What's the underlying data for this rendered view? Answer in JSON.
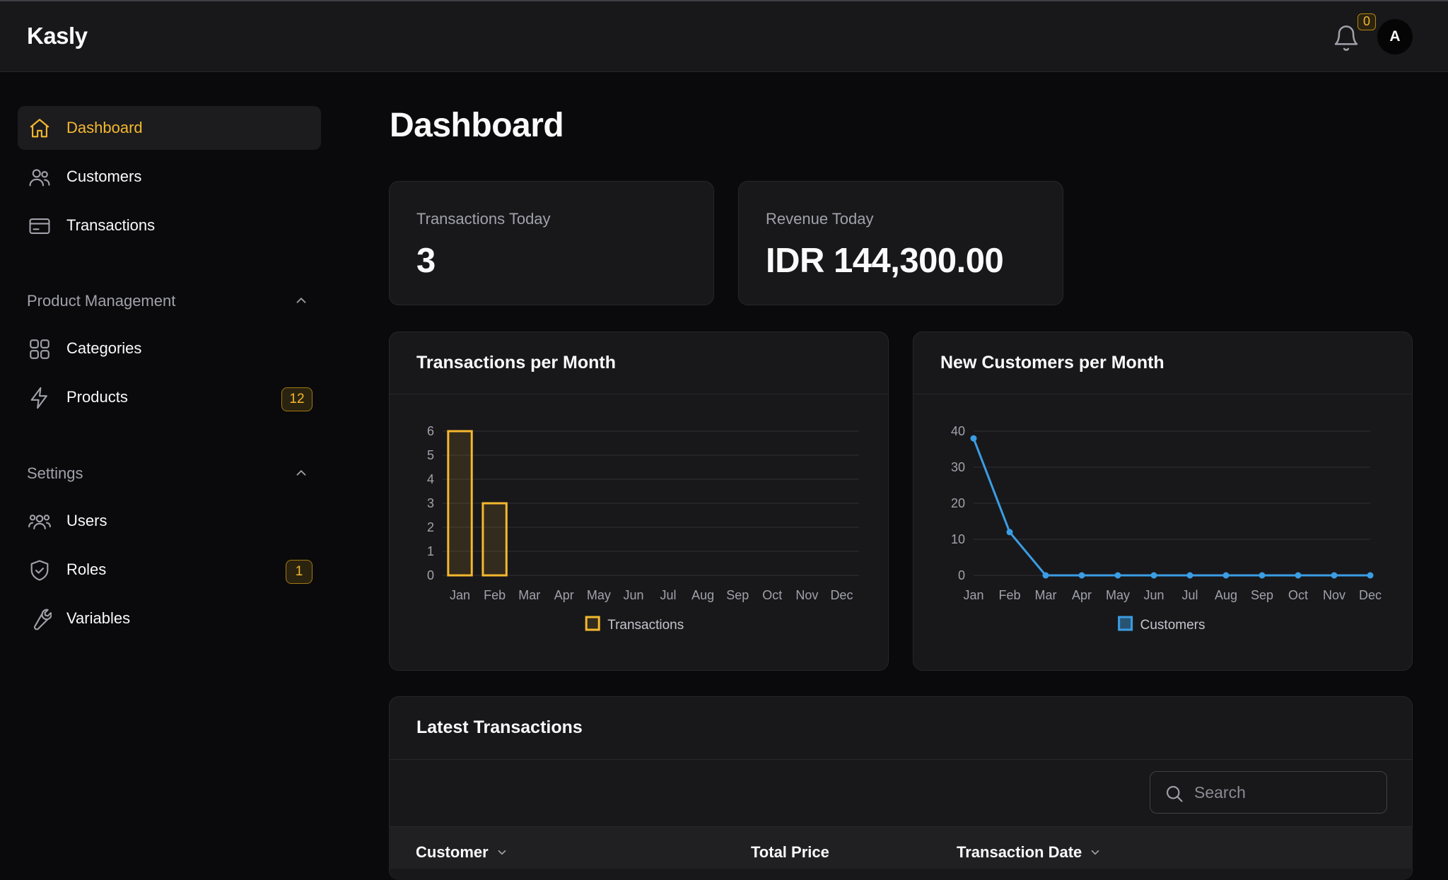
{
  "app": {
    "title": "Kasly",
    "notification_count": "0",
    "avatar_initial": "A"
  },
  "sidebar": {
    "items": [
      {
        "label": "Dashboard",
        "icon": "home-icon",
        "active": true
      },
      {
        "label": "Customers",
        "icon": "users-icon"
      },
      {
        "label": "Transactions",
        "icon": "credit-card-icon"
      }
    ],
    "product_management": {
      "title": "Product Management",
      "items": [
        {
          "label": "Categories",
          "icon": "grid-icon"
        },
        {
          "label": "Products",
          "icon": "bolt-icon",
          "badge": "12"
        }
      ]
    },
    "settings": {
      "title": "Settings",
      "items": [
        {
          "label": "Users",
          "icon": "user-group-icon"
        },
        {
          "label": "Roles",
          "icon": "shield-check-icon",
          "badge": "1"
        },
        {
          "label": "Variables",
          "icon": "wrench-icon"
        }
      ]
    }
  },
  "main": {
    "title": "Dashboard",
    "stats": [
      {
        "label": "Transactions Today",
        "value": "3"
      },
      {
        "label": "Revenue Today",
        "value": "IDR 144,300.00"
      }
    ],
    "latest": {
      "title": "Latest Transactions",
      "search_placeholder": "Search",
      "columns": [
        "Customer",
        "Total Price",
        "Transaction Date"
      ]
    }
  },
  "colors": {
    "accent": "#f5b82e",
    "blue": "#3b9de3",
    "background": "#0a0a0c",
    "card": "#18181b"
  },
  "chart_data": [
    {
      "type": "bar",
      "title": "Transactions per Month",
      "categories": [
        "Jan",
        "Feb",
        "Mar",
        "Apr",
        "May",
        "Jun",
        "Jul",
        "Aug",
        "Sep",
        "Oct",
        "Nov",
        "Dec"
      ],
      "series": [
        {
          "name": "Transactions",
          "values": [
            6,
            3,
            0,
            0,
            0,
            0,
            0,
            0,
            0,
            0,
            0,
            0
          ]
        }
      ],
      "yticks": [
        0,
        1,
        2,
        3,
        4,
        5,
        6
      ],
      "ylim": [
        0,
        6
      ],
      "legend": "bottom-center"
    },
    {
      "type": "line",
      "title": "New Customers per Month",
      "categories": [
        "Jan",
        "Feb",
        "Mar",
        "Apr",
        "May",
        "Jun",
        "Jul",
        "Aug",
        "Sep",
        "Oct",
        "Nov",
        "Dec"
      ],
      "series": [
        {
          "name": "Customers",
          "values": [
            38,
            12,
            0,
            0,
            0,
            0,
            0,
            0,
            0,
            0,
            0,
            0
          ]
        }
      ],
      "yticks": [
        0,
        10,
        20,
        30,
        40
      ],
      "ylim": [
        0,
        40
      ],
      "legend": "bottom-center"
    }
  ]
}
